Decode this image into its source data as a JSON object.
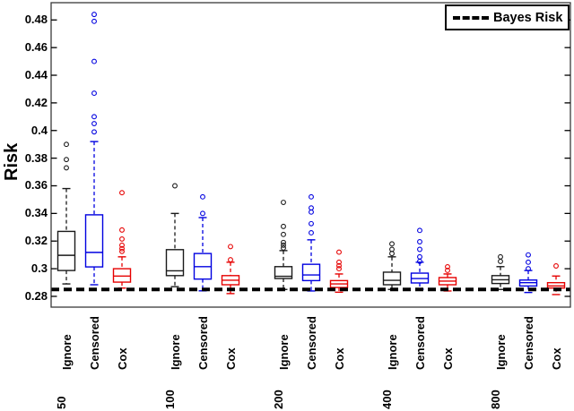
{
  "figure": {
    "ylabel": "Risk",
    "legend_label": "Bayes Risk"
  },
  "chart_data": {
    "type": "boxplot",
    "title": "",
    "xlabel": "",
    "ylabel": "Risk",
    "legend_label": "Bayes Risk",
    "legend_position": "top-right",
    "grid": false,
    "ylim": [
      0.2722,
      0.4925
    ],
    "yticks": [
      0.28,
      0.3,
      0.32,
      0.34,
      0.36,
      0.38,
      0.4,
      0.42,
      0.44,
      0.46,
      0.48
    ],
    "bayes_risk": 0.285,
    "methods": [
      "Ignore",
      "Censored",
      "Cox"
    ],
    "colors": {
      "Ignore": "#1a1a1a",
      "Censored": "#0000e0",
      "Cox": "#e60000",
      "bayes_line": "#000000"
    },
    "groups": [
      {
        "n": "50",
        "boxes": [
          {
            "method": "Ignore",
            "whisker_low": 0.289,
            "q1": 0.2987,
            "median": 0.3097,
            "q3": 0.327,
            "whisker_high": 0.358,
            "outliers": [
              0.373,
              0.379,
              0.39
            ]
          },
          {
            "method": "Censored",
            "whisker_low": 0.2884,
            "q1": 0.3013,
            "median": 0.3118,
            "q3": 0.339,
            "whisker_high": 0.392,
            "outliers": [
              0.399,
              0.405,
              0.41,
              0.427,
              0.45,
              0.479,
              0.484
            ]
          },
          {
            "method": "Cox",
            "whisker_low": 0.286,
            "q1": 0.2903,
            "median": 0.2947,
            "q3": 0.3,
            "whisker_high": 0.3086,
            "outliers": [
              0.3125,
              0.3145,
              0.317,
              0.3215,
              0.328,
              0.355
            ]
          }
        ]
      },
      {
        "n": "100",
        "boxes": [
          {
            "method": "Ignore",
            "whisker_low": 0.287,
            "q1": 0.295,
            "median": 0.2985,
            "q3": 0.3138,
            "whisker_high": 0.34,
            "outliers": [
              0.36
            ]
          },
          {
            "method": "Censored",
            "whisker_low": 0.284,
            "q1": 0.2925,
            "median": 0.3015,
            "q3": 0.311,
            "whisker_high": 0.337,
            "outliers": [
              0.34,
              0.352
            ]
          },
          {
            "method": "Cox",
            "whisker_low": 0.282,
            "q1": 0.2884,
            "median": 0.2917,
            "q3": 0.295,
            "whisker_high": 0.3047,
            "outliers": [
              0.3065,
              0.316
            ]
          }
        ]
      },
      {
        "n": "200",
        "boxes": [
          {
            "method": "Ignore",
            "whisker_low": 0.285,
            "q1": 0.2929,
            "median": 0.2945,
            "q3": 0.3015,
            "whisker_high": 0.3131,
            "outliers": [
              0.315,
              0.317,
              0.319,
              0.3248,
              0.3306,
              0.348
            ]
          },
          {
            "method": "Censored",
            "whisker_low": 0.2839,
            "q1": 0.2914,
            "median": 0.2955,
            "q3": 0.3032,
            "whisker_high": 0.3209,
            "outliers": [
              0.326,
              0.3326,
              0.341,
              0.344,
              0.352
            ]
          },
          {
            "method": "Cox",
            "whisker_low": 0.283,
            "q1": 0.2864,
            "median": 0.289,
            "q3": 0.2914,
            "whisker_high": 0.2962,
            "outliers": [
              0.3,
              0.3022,
              0.3047,
              0.312
            ]
          }
        ]
      },
      {
        "n": "400",
        "boxes": [
          {
            "method": "Ignore",
            "whisker_low": 0.285,
            "q1": 0.2884,
            "median": 0.2916,
            "q3": 0.2975,
            "whisker_high": 0.3086,
            "outliers": [
              0.311,
              0.314,
              0.318
            ]
          },
          {
            "method": "Censored",
            "whisker_low": 0.2852,
            "q1": 0.2897,
            "median": 0.2929,
            "q3": 0.2968,
            "whisker_high": 0.3047,
            "outliers": [
              0.3053,
              0.3086,
              0.314,
              0.3195,
              0.3277
            ]
          },
          {
            "method": "Cox",
            "whisker_low": 0.2839,
            "q1": 0.2884,
            "median": 0.291,
            "q3": 0.2936,
            "whisker_high": 0.2962,
            "outliers": [
              0.2988,
              0.3014
            ]
          }
        ]
      },
      {
        "n": "800",
        "boxes": [
          {
            "method": "Ignore",
            "whisker_low": 0.285,
            "q1": 0.2893,
            "median": 0.292,
            "q3": 0.295,
            "whisker_high": 0.3015,
            "outliers": [
              0.3053,
              0.3086
            ]
          },
          {
            "method": "Censored",
            "whisker_low": 0.2828,
            "q1": 0.2875,
            "median": 0.2899,
            "q3": 0.2918,
            "whisker_high": 0.2987,
            "outliers": [
              0.3,
              0.3047,
              0.31
            ]
          },
          {
            "method": "Cox",
            "whisker_low": 0.2813,
            "q1": 0.286,
            "median": 0.2875,
            "q3": 0.2899,
            "whisker_high": 0.2947,
            "outliers": [
              0.302
            ]
          }
        ]
      }
    ]
  }
}
